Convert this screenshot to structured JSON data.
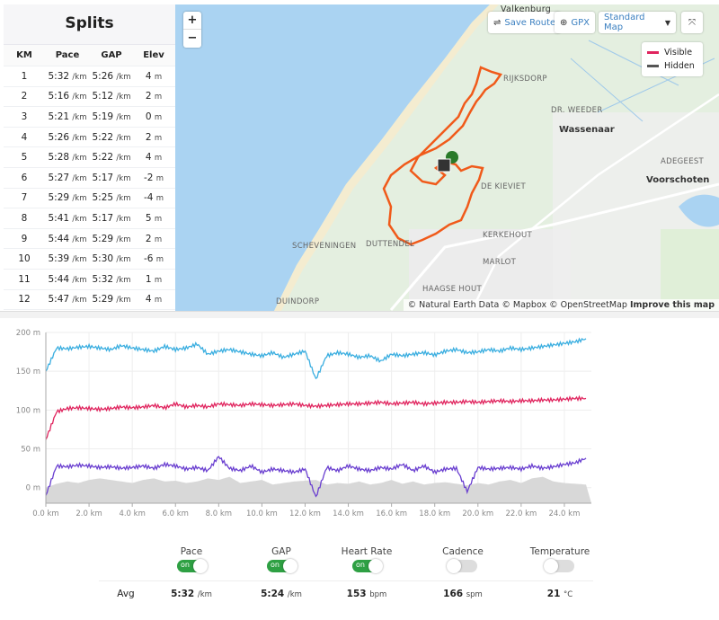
{
  "splits": {
    "title": "Splits",
    "headers": [
      "KM",
      "Pace",
      "GAP",
      "Elev"
    ],
    "rows": [
      {
        "km": "1",
        "pace": "5:32",
        "gap": "5:26",
        "elev": "4"
      },
      {
        "km": "2",
        "pace": "5:16",
        "gap": "5:12",
        "elev": "2"
      },
      {
        "km": "3",
        "pace": "5:21",
        "gap": "5:19",
        "elev": "0"
      },
      {
        "km": "4",
        "pace": "5:26",
        "gap": "5:22",
        "elev": "2"
      },
      {
        "km": "5",
        "pace": "5:28",
        "gap": "5:22",
        "elev": "4"
      },
      {
        "km": "6",
        "pace": "5:27",
        "gap": "5:17",
        "elev": "-2"
      },
      {
        "km": "7",
        "pace": "5:29",
        "gap": "5:25",
        "elev": "-4"
      },
      {
        "km": "8",
        "pace": "5:41",
        "gap": "5:17",
        "elev": "5"
      },
      {
        "km": "9",
        "pace": "5:44",
        "gap": "5:29",
        "elev": "2"
      },
      {
        "km": "10",
        "pace": "5:39",
        "gap": "5:30",
        "elev": "-6"
      },
      {
        "km": "11",
        "pace": "5:44",
        "gap": "5:32",
        "elev": "1"
      },
      {
        "km": "12",
        "pace": "5:47",
        "gap": "5:29",
        "elev": "4"
      }
    ],
    "pace_unit": "/km",
    "elev_unit": "m"
  },
  "map": {
    "save_route": "Save Route",
    "gpx": "GPX",
    "map_style": "Standard Map",
    "legend": {
      "visible": "Visible",
      "hidden": "Hidden"
    },
    "labels": {
      "valkenburg": "Valkenburg",
      "rijksdorp": "RIJKSDORP",
      "dr_weeder": "DR. WEEDER",
      "wassenaar": "Wassenaar",
      "adegeest": "ADEGEEST",
      "voorschoten": "Voorschoten",
      "de_kieviet": "DE KIEVIET",
      "kerkehout": "KERKEHOUT",
      "scheveningen": "SCHEVENINGEN",
      "duttendel": "DUTTENDEL",
      "marlot": "MARLOT",
      "haagse_hout": "HAAGSE HOUT",
      "duindorp": "DUINDORP"
    },
    "attribution": "© Natural Earth Data © Mapbox © OpenStreetMap",
    "improve": "Improve this map",
    "colors": {
      "route": "#f05a1a",
      "visible": "#e0245e",
      "hidden": "#555555",
      "sea": "#aad3f2"
    }
  },
  "chart_data": {
    "type": "line",
    "ylim": [
      -20,
      200
    ],
    "xlim": [
      0,
      25.25
    ],
    "y_ticks": [
      "0 m",
      "50 m",
      "100 m",
      "150 m",
      "200 m"
    ],
    "y_tick_values": [
      0,
      50,
      100,
      150,
      200
    ],
    "x_ticks": [
      "0.0 km",
      "2.0 km",
      "4.0 km",
      "6.0 km",
      "8.0 km",
      "10.0 km",
      "12.0 km",
      "14.0 km",
      "16.0 km",
      "18.0 km",
      "20.0 km",
      "22.0 km",
      "24.0 km"
    ],
    "x_tick_values": [
      0,
      2,
      4,
      6,
      8,
      10,
      12,
      14,
      16,
      18,
      20,
      22,
      24
    ],
    "grid": true,
    "x_step_km": 0.5,
    "series": [
      {
        "color": "#3aaee0",
        "values": [
          150,
          180,
          179,
          181,
          182,
          180,
          178,
          183,
          180,
          178,
          176,
          182,
          178,
          180,
          185,
          172,
          176,
          178,
          175,
          172,
          170,
          174,
          168,
          172,
          176,
          140,
          170,
          174,
          172,
          168,
          170,
          163,
          172,
          170,
          172,
          174,
          171,
          176,
          178,
          174,
          175,
          178,
          176,
          180,
          178,
          180,
          182,
          184,
          186,
          188,
          192
        ]
      },
      {
        "color": "#e0245e",
        "values": [
          62,
          98,
          102,
          103,
          102,
          101,
          102,
          104,
          103,
          104,
          106,
          103,
          108,
          104,
          106,
          104,
          108,
          107,
          106,
          108,
          107,
          106,
          107,
          108,
          106,
          105,
          106,
          107,
          108,
          108,
          109,
          110,
          108,
          109,
          110,
          108,
          109,
          110,
          110,
          111,
          110,
          111,
          112,
          111,
          112,
          112,
          113,
          113,
          114,
          115,
          115
        ]
      },
      {
        "color": "#6a3fd0",
        "values": [
          -10,
          28,
          27,
          29,
          28,
          26,
          27,
          25,
          26,
          28,
          25,
          30,
          28,
          24,
          26,
          22,
          40,
          25,
          22,
          28,
          20,
          24,
          22,
          20,
          24,
          -12,
          26,
          22,
          28,
          24,
          22,
          26,
          24,
          30,
          22,
          28,
          20,
          24,
          25,
          -5,
          26,
          24,
          25,
          26,
          24,
          28,
          25,
          27,
          30,
          32,
          38
        ]
      },
      {
        "type": "area",
        "color": "#d8d8d8",
        "values": [
          0,
          5,
          8,
          6,
          10,
          12,
          10,
          8,
          6,
          10,
          12,
          8,
          9,
          6,
          8,
          12,
          10,
          14,
          6,
          8,
          10,
          4,
          6,
          8,
          9,
          10,
          4,
          6,
          5,
          8,
          4,
          6,
          10,
          5,
          8,
          4,
          6,
          7,
          5,
          3,
          6,
          4,
          8,
          10,
          6,
          12,
          14,
          8,
          6,
          5,
          4
        ]
      }
    ]
  },
  "toggles": [
    {
      "label": "Pace",
      "on": true
    },
    {
      "label": "GAP",
      "on": true
    },
    {
      "label": "Heart Rate",
      "on": true
    },
    {
      "label": "Cadence",
      "on": false
    },
    {
      "label": "Temperature",
      "on": false
    }
  ],
  "on_label": "on",
  "avg": {
    "label": "Avg",
    "items": [
      {
        "value": "5:32",
        "unit": "/km"
      },
      {
        "value": "5:24",
        "unit": "/km"
      },
      {
        "value": "153",
        "unit": "bpm"
      },
      {
        "value": "166",
        "unit": "spm"
      },
      {
        "value": "21",
        "unit": "°C"
      }
    ]
  }
}
